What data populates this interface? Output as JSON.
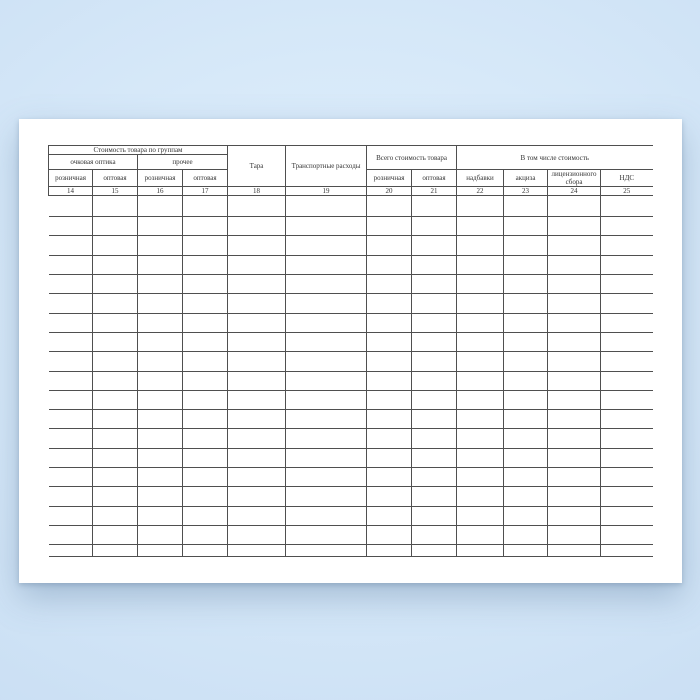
{
  "colors": {
    "bg_top": "#e0eefc",
    "bg_mid": "#d7e9f9",
    "bg_edge": "#c9def3",
    "page": "#ffffff",
    "line": "#4f4f4f",
    "text": "#333333"
  },
  "table": {
    "group_headers": {
      "cost_by_groups": "Стоимость товара по группам",
      "eyeglass_optics": "очковая оптика",
      "other": "прочее",
      "tara": "Тара",
      "transport": "Транспортные расходы",
      "total_cost": "Всего стоимость товара",
      "including_cost": "В том числе стоимость"
    },
    "sub_headers": {
      "retail": "розничная",
      "wholesale": "оптовая",
      "markups": "надбавки",
      "excise": "акциза",
      "license_fee": "лицензионного сбора",
      "vat": "НДС"
    },
    "column_numbers": [
      "14",
      "15",
      "16",
      "17",
      "18",
      "19",
      "20",
      "21",
      "22",
      "23",
      "24",
      "25"
    ],
    "body_rows": 19,
    "body_columns": 12
  }
}
